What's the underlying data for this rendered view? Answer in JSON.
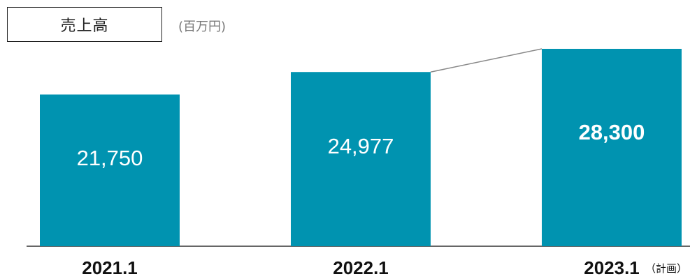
{
  "chart_data": {
    "type": "bar",
    "title": "売上高",
    "unit": "(百万円)",
    "categories": [
      "2021.1",
      "2022.1",
      "2023.1"
    ],
    "category_notes": [
      "",
      "",
      "（計画）"
    ],
    "values": [
      21750,
      24977,
      28300
    ],
    "value_labels": [
      "21,750",
      "24,977",
      "28,300"
    ],
    "ylim": [
      0,
      30000
    ],
    "grid": false,
    "legend": "none",
    "bar_color": "#0093b0",
    "connector_color": "#888888"
  }
}
